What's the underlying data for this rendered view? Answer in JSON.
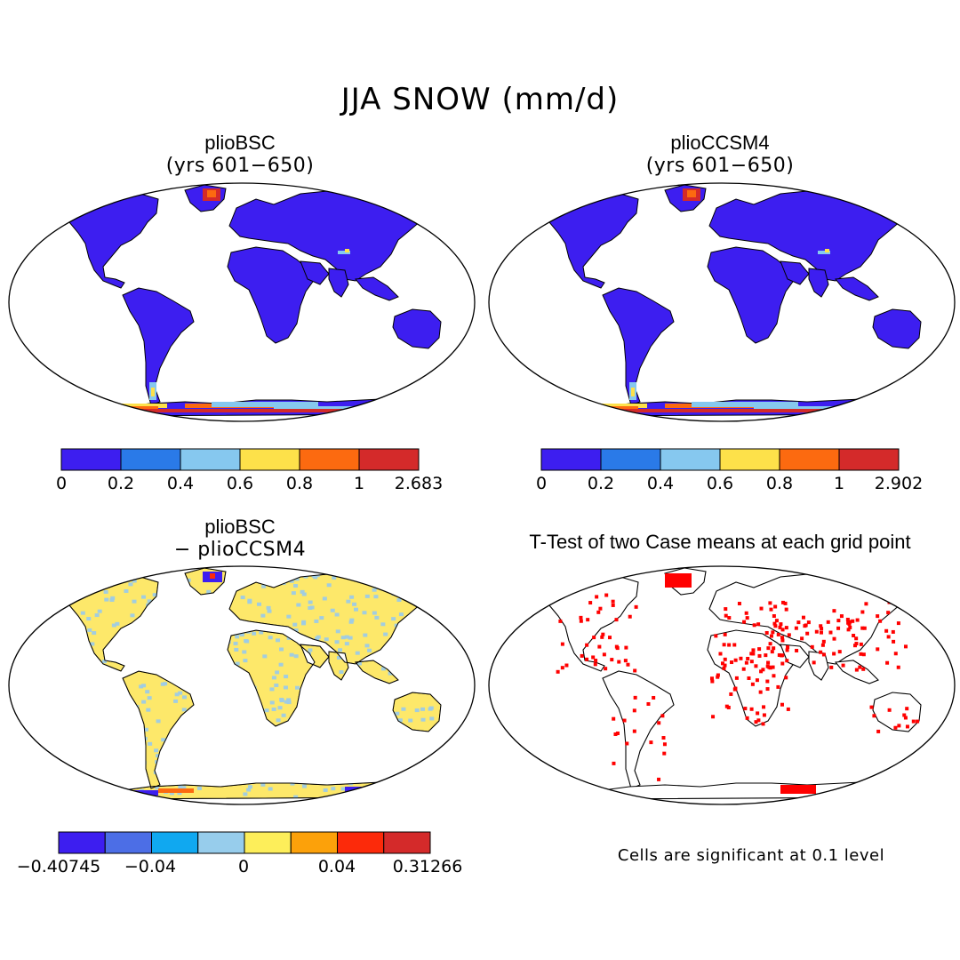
{
  "figure_title": "JJA SNOW (mm/d)",
  "panels": [
    {
      "title": "plioBSC",
      "subtitle": "(yrs 601−650)",
      "colorbar": {
        "colors": [
          "#3d1ef0",
          "#2a7ae8",
          "#86c8ef",
          "#fde14a",
          "#fc6a10",
          "#d42a2a"
        ],
        "labels": [
          "0",
          "0.2",
          "0.4",
          "0.6",
          "0.8",
          "1",
          "2.683"
        ]
      }
    },
    {
      "title": "plioCCSM4",
      "subtitle": "(yrs 601−650)",
      "colorbar": {
        "colors": [
          "#3d1ef0",
          "#2a7ae8",
          "#86c8ef",
          "#fde14a",
          "#fc6a10",
          "#d42a2a"
        ],
        "labels": [
          "0",
          "0.2",
          "0.4",
          "0.6",
          "0.8",
          "1",
          "2.902"
        ]
      }
    },
    {
      "title": "plioBSC",
      "subtitle": "− plioCCSM4",
      "colorbar": {
        "colors": [
          "#3d1ef0",
          "#4c6ee6",
          "#10a8f0",
          "#97cdec",
          "#fdee5a",
          "#fca10a",
          "#fc2a0a",
          "#d42a2a"
        ],
        "labels": [
          "−0.40745",
          "−0.04",
          "0",
          "0.04",
          "0.31266"
        ]
      }
    },
    {
      "title": "T-Test of two Case means at each grid point",
      "note": "Cells are significant at 0.1 level"
    }
  ],
  "map_colors": {
    "land_snow": "#3d1ef0",
    "diff_land": "#fde86a",
    "diff_alt": "#9dcbe6",
    "significant": "#ff0000"
  }
}
